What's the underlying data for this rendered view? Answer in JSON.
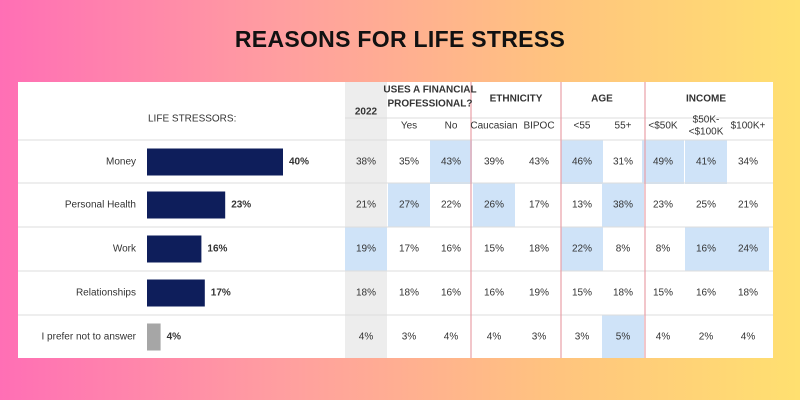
{
  "title": "REASONS FOR LIFE STRESS",
  "chart_data": {
    "type": "bar",
    "row_header": "LIFE STRESSORS:",
    "categories": [
      "Money",
      "Personal Health",
      "Work",
      "Relationships",
      "I prefer not to answer"
    ],
    "values": [
      40,
      23,
      16,
      17,
      4
    ],
    "value_labels": [
      "40%",
      "23%",
      "16%",
      "17%",
      "4%"
    ],
    "bar_colors": [
      "#0e1e5b",
      "#0e1e5b",
      "#0e1e5b",
      "#0e1e5b",
      "#a6a6a6"
    ],
    "xlim": [
      0,
      100
    ],
    "table": {
      "groups": [
        {
          "label": "2022",
          "columns": [
            ""
          ]
        },
        {
          "label": "USES A FINANCIAL PROFESSIONAL?",
          "columns": [
            "Yes",
            "No"
          ]
        },
        {
          "label": "ETHNICITY",
          "columns": [
            "Caucasian",
            "BIPOC"
          ]
        },
        {
          "label": "AGE",
          "columns": [
            "<55",
            "55+"
          ]
        },
        {
          "label": "INCOME",
          "columns": [
            "<$50K",
            "$50K-<$100K",
            "$100K+"
          ]
        }
      ],
      "rows": [
        [
          "38%",
          "35%",
          "43%",
          "39%",
          "43%",
          "46%",
          "31%",
          "49%",
          "41%",
          "34%"
        ],
        [
          "21%",
          "27%",
          "22%",
          "26%",
          "17%",
          "13%",
          "38%",
          "23%",
          "25%",
          "21%"
        ],
        [
          "19%",
          "17%",
          "16%",
          "15%",
          "18%",
          "22%",
          "8%",
          "8%",
          "16%",
          "24%"
        ],
        [
          "18%",
          "18%",
          "16%",
          "16%",
          "19%",
          "15%",
          "18%",
          "15%",
          "16%",
          "18%"
        ],
        [
          "4%",
          "3%",
          "4%",
          "4%",
          "3%",
          "3%",
          "5%",
          "4%",
          "2%",
          "4%"
        ]
      ],
      "highlighted": [
        [
          0,
          2
        ],
        [
          0,
          5
        ],
        [
          0,
          7
        ],
        [
          0,
          8
        ],
        [
          1,
          1
        ],
        [
          1,
          3
        ],
        [
          1,
          6
        ],
        [
          2,
          0
        ],
        [
          2,
          5
        ],
        [
          2,
          8
        ],
        [
          2,
          9
        ],
        [
          4,
          6
        ]
      ]
    },
    "colors": {
      "bar": "#0e1e5b",
      "bar_muted": "#a6a6a6",
      "highlight": "#cfe3f8",
      "year_column_bg": "#ededed",
      "divider": "#e8a0a8"
    }
  }
}
